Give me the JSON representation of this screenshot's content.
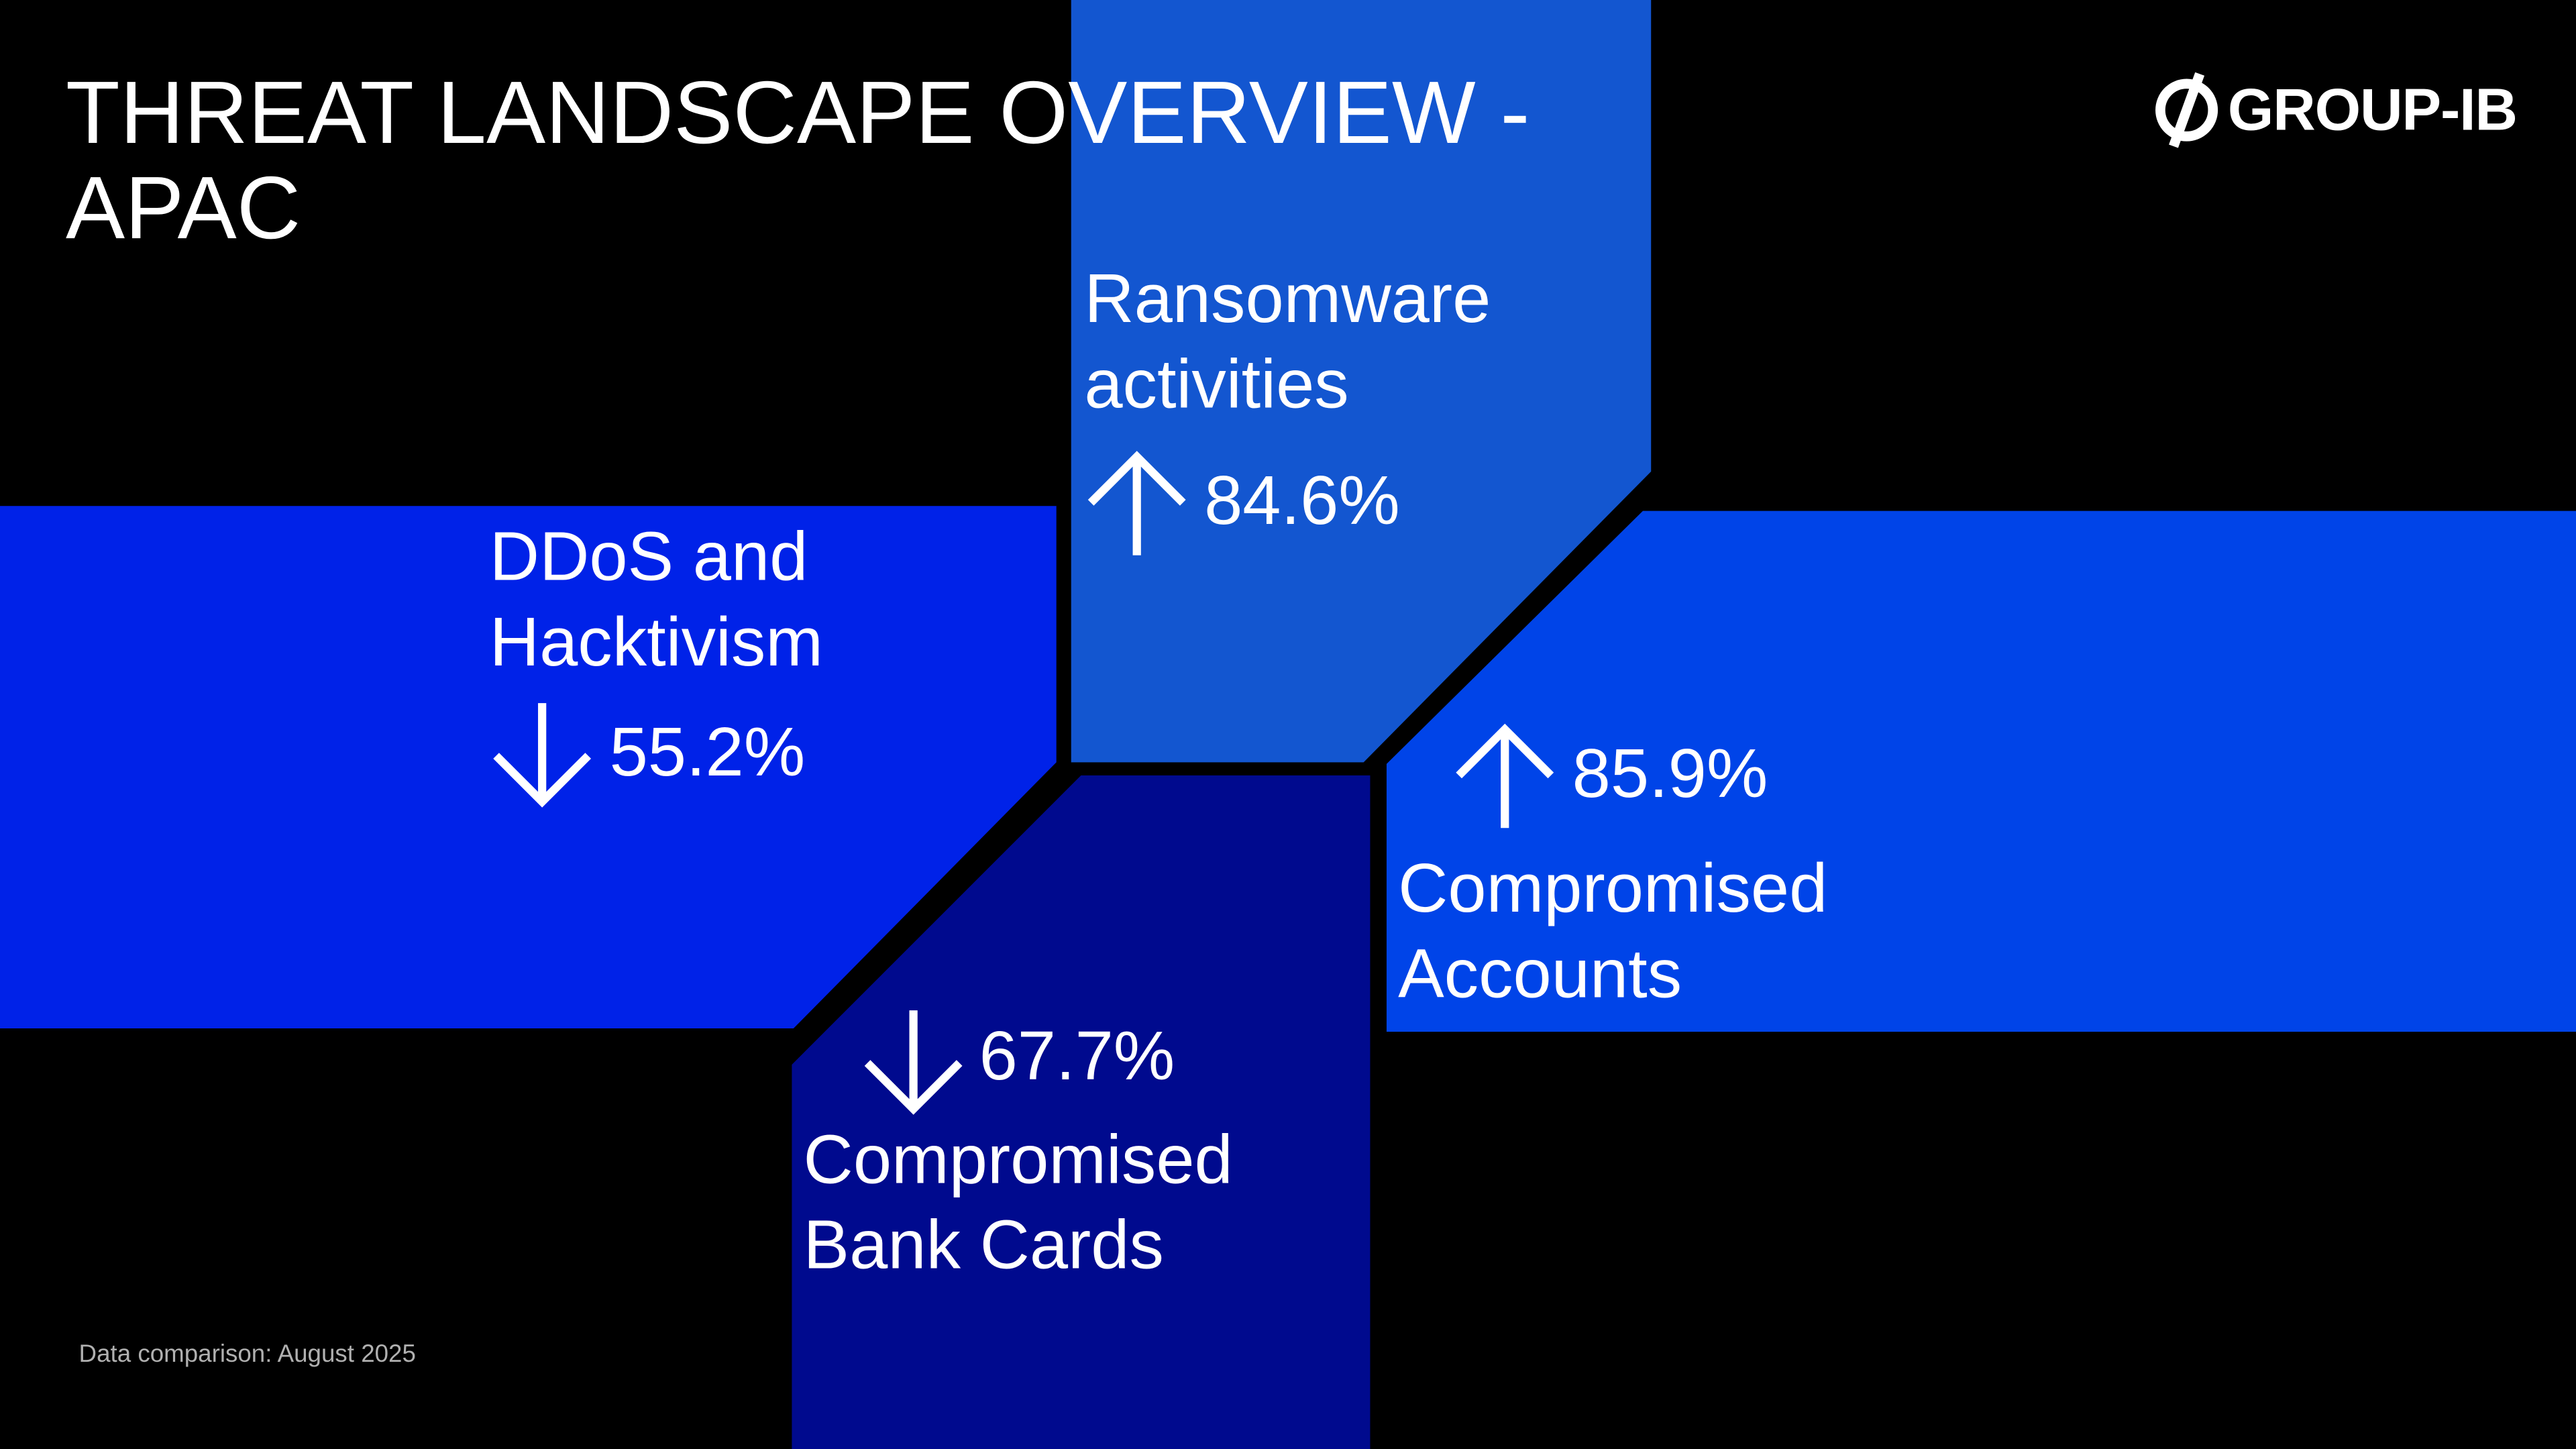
{
  "header": {
    "title": "THREAT LANDSCAPE OVERVIEW - APAC",
    "logo": "GROUP-IB"
  },
  "panels": [
    {
      "label": "Ransomware activities",
      "value": "84.6%",
      "direction": "up"
    },
    {
      "label": "DDoS and Hacktivism",
      "value": "55.2%",
      "direction": "down"
    },
    {
      "label": "Compromised Accounts",
      "value": "85.9%",
      "direction": "up"
    },
    {
      "label": "Compromised Bank Cards",
      "value": "67.7%",
      "direction": "down"
    }
  ],
  "footnote": "Data comparison: August 2025"
}
